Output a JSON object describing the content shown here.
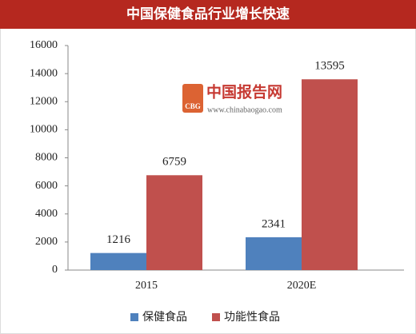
{
  "chart_data": {
    "type": "bar",
    "title": "中国保健食品行业增长快速",
    "categories": [
      "2015",
      "2020E"
    ],
    "series": [
      {
        "name": "保健食品",
        "color": "#4f81bd",
        "values": [
          1216,
          2341
        ]
      },
      {
        "name": "功能性食品",
        "color": "#c0504d",
        "values": [
          6759,
          13595
        ]
      }
    ],
    "ylim": [
      0,
      16000
    ],
    "yticks": [
      0,
      2000,
      4000,
      6000,
      8000,
      10000,
      12000,
      14000,
      16000
    ],
    "legend": "bottom",
    "watermark": {
      "logo": "CBG",
      "title": "中国报告网",
      "url": "www.chinabaogao.com"
    }
  }
}
